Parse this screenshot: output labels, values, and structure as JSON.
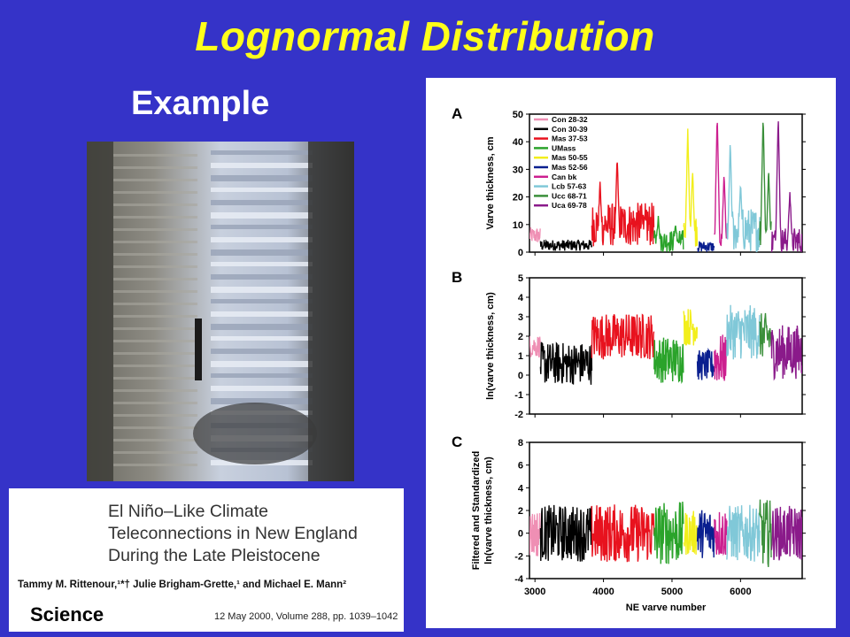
{
  "slide": {
    "title": "Lognormal Distribution",
    "subtitle": "Example"
  },
  "photo": {
    "description_icon": "varve-sediment-core-photo"
  },
  "paper": {
    "title_lines": [
      "El Niño–Like Climate",
      "Teleconnections in New England",
      "During the Late Pleistocene"
    ],
    "authors": "Tammy M. Rittenour,¹*† Julie Brigham-Grette,¹ and Michael E. Mann²",
    "journal": "Science",
    "citation": "12 May 2000, Volume 288, pp. 1039–1042"
  },
  "chart_data": {
    "type": "line",
    "xlabel": "NE varve number",
    "x_ticks": [
      3000,
      4000,
      5000,
      6000
    ],
    "xlim": [
      2920,
      6900
    ],
    "legend_placement": "top-left of panel A",
    "series": [
      {
        "name": "Con 28-32",
        "color": "#ef8fb4",
        "range": [
          2920,
          3080
        ]
      },
      {
        "name": "Con 30-39",
        "color": "#000000",
        "range": [
          3080,
          3830
        ]
      },
      {
        "name": "Mas 37-53",
        "color": "#e8121e",
        "range": [
          3830,
          4740
        ]
      },
      {
        "name": "UMass",
        "color": "#2aa32a",
        "range": [
          4740,
          5170
        ]
      },
      {
        "name": "Mas 50-55",
        "color": "#f2ee1c",
        "range": [
          5170,
          5370
        ]
      },
      {
        "name": "Mas 52-56",
        "color": "#0a1f8f",
        "range": [
          5370,
          5620
        ]
      },
      {
        "name": "Can bk",
        "color": "#cc1f8f",
        "range": [
          5620,
          5800
        ]
      },
      {
        "name": "Lcb 57-63",
        "color": "#80c8d8",
        "range": [
          5800,
          6280
        ]
      },
      {
        "name": "Ucc 68-71",
        "color": "#3a8f3a",
        "range": [
          6280,
          6450
        ]
      },
      {
        "name": "Uca 69-78",
        "color": "#8a1a8a",
        "range": [
          6450,
          6900
        ]
      }
    ],
    "panels": [
      {
        "letter": "A",
        "ylabel": "Varve thickness, cm",
        "ylim": [
          0,
          50
        ],
        "yticks": [
          0,
          10,
          20,
          30,
          40,
          50
        ],
        "segments": [
          {
            "series": 0,
            "base": 6,
            "amp": 3
          },
          {
            "series": 1,
            "base": 2.5,
            "amp": 2
          },
          {
            "series": 2,
            "base": 10,
            "amp": 8,
            "spikes": [
              [
                3950,
                26
              ],
              [
                4200,
                35
              ],
              [
                4600,
                14
              ]
            ]
          },
          {
            "series": 3,
            "base": 4,
            "amp": 4,
            "spikes": [
              [
                4800,
                13
              ],
              [
                5050,
                10
              ]
            ]
          },
          {
            "series": 4,
            "base": 8,
            "amp": 6,
            "spikes": [
              [
                5230,
                45
              ],
              [
                5300,
                30
              ]
            ]
          },
          {
            "series": 5,
            "base": 2,
            "amp": 2
          },
          {
            "series": 6,
            "base": 4,
            "amp": 3,
            "spikes": [
              [
                5660,
                50
              ],
              [
                5760,
                28
              ]
            ]
          },
          {
            "series": 7,
            "base": 8,
            "amp": 8,
            "spikes": [
              [
                5850,
                40
              ],
              [
                6000,
                25
              ]
            ]
          },
          {
            "series": 8,
            "base": 7,
            "amp": 6,
            "spikes": [
              [
                6330,
                50
              ],
              [
                6410,
                30
              ]
            ]
          },
          {
            "series": 9,
            "base": 4,
            "amp": 5,
            "spikes": [
              [
                6550,
                50
              ],
              [
                6720,
                22
              ]
            ]
          }
        ]
      },
      {
        "letter": "B",
        "ylabel": "ln(varve thickness, cm)",
        "ylim": [
          -2,
          5
        ],
        "yticks": [
          -2,
          -1,
          0,
          1,
          2,
          3,
          4,
          5
        ],
        "segments": [
          {
            "series": 0,
            "base": 1.5,
            "amp": 0.6
          },
          {
            "series": 1,
            "base": 0.6,
            "amp": 1.1
          },
          {
            "series": 2,
            "base": 2.0,
            "amp": 1.2
          },
          {
            "series": 3,
            "base": 0.8,
            "amp": 1.2
          },
          {
            "series": 4,
            "base": 2.5,
            "amp": 1.0
          },
          {
            "series": 5,
            "base": 0.5,
            "amp": 0.8
          },
          {
            "series": 6,
            "base": 0.8,
            "amp": 1.3
          },
          {
            "series": 7,
            "base": 2.2,
            "amp": 1.4
          },
          {
            "series": 8,
            "base": 2.0,
            "amp": 1.2
          },
          {
            "series": 9,
            "base": 1.2,
            "amp": 1.4
          }
        ]
      },
      {
        "letter": "C",
        "ylabel": "Filtered and Standardized ln(varve thickness, cm)",
        "ylim": [
          -4,
          8
        ],
        "yticks": [
          -4,
          -2,
          0,
          2,
          4,
          6,
          8
        ],
        "segments": [
          {
            "series": 0,
            "base": 0,
            "amp": 2.2
          },
          {
            "series": 1,
            "base": 0,
            "amp": 2.5
          },
          {
            "series": 2,
            "base": 0,
            "amp": 2.6
          },
          {
            "series": 3,
            "base": 0,
            "amp": 2.8
          },
          {
            "series": 4,
            "base": 0,
            "amp": 2.0
          },
          {
            "series": 5,
            "base": 0,
            "amp": 2.2
          },
          {
            "series": 6,
            "base": 0,
            "amp": 2.3
          },
          {
            "series": 7,
            "base": 0,
            "amp": 2.5
          },
          {
            "series": 8,
            "base": 0,
            "amp": 3.0
          },
          {
            "series": 9,
            "base": 0,
            "amp": 2.4
          }
        ]
      }
    ]
  }
}
